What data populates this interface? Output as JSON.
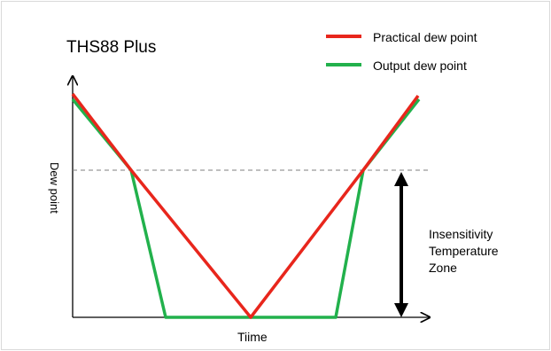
{
  "title": "THS88 Plus",
  "legend": [
    {
      "label": "Practical dew point",
      "color": "#e8261c"
    },
    {
      "label": "Output dew point",
      "color": "#22b14c"
    }
  ],
  "axes": {
    "x_label": "Tiime",
    "y_label": "Dew point"
  },
  "annotation": {
    "lines": [
      "Insensitivity",
      "Temperature",
      "Zone"
    ]
  },
  "colors": {
    "practical": "#e8261c",
    "output": "#22b14c",
    "threshold": "#7f7f7f",
    "arrow": "#000000"
  }
}
